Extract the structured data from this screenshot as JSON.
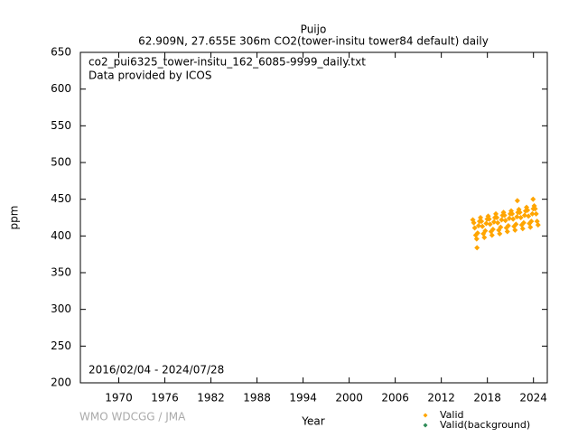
{
  "chart_data": {
    "type": "scatter",
    "title": "Puijo",
    "subtitle": "62.909N, 27.655E 306m    CO2(tower-insitu tower84 default) daily",
    "annotations": [
      "co2_pui6325_tower-insitu_162_6085-9999_daily.txt",
      "Data provided by ICOS",
      "2016/02/04 - 2024/07/28"
    ],
    "credit": "WMO WDCGG / JMA",
    "xlabel": "Year",
    "ylabel": "ppm",
    "xlim": [
      1965,
      2025.8
    ],
    "xticks": [
      1970,
      1976,
      1982,
      1988,
      1994,
      2000,
      2006,
      2012,
      2018,
      2024
    ],
    "ylim": [
      200,
      650
    ],
    "yticks": [
      200,
      250,
      300,
      350,
      400,
      450,
      500,
      550,
      600,
      650
    ],
    "series": [
      {
        "name": "Valid",
        "color": "#ffa500",
        "x": [
          2016.1,
          2016.225,
          2016.35,
          2016.475,
          2016.6,
          2016.725,
          2016.85,
          2016.975,
          2017.1,
          2017.225,
          2017.35,
          2017.475,
          2017.6,
          2017.725,
          2017.85,
          2017.975,
          2018.1,
          2018.225,
          2018.35,
          2018.475,
          2018.6,
          2018.725,
          2018.85,
          2018.975,
          2019.1,
          2019.225,
          2019.35,
          2019.475,
          2019.6,
          2019.725,
          2019.85,
          2019.975,
          2020.1,
          2020.225,
          2020.35,
          2020.475,
          2020.6,
          2020.725,
          2020.85,
          2020.975,
          2021.1,
          2021.225,
          2021.35,
          2021.475,
          2021.6,
          2021.725,
          2021.85,
          2021.975,
          2022.1,
          2022.225,
          2022.35,
          2022.475,
          2022.6,
          2022.725,
          2022.85,
          2022.975,
          2023.1,
          2023.225,
          2023.35,
          2023.475,
          2023.6,
          2023.725,
          2023.85,
          2023.975,
          2024.1,
          2024.225,
          2024.35,
          2024.475,
          2024.6,
          2016.65,
          2021.9,
          2023.95
        ],
        "values": [
          422,
          418,
          411,
          401,
          396,
          404,
          414,
          420,
          425,
          420,
          413,
          403,
          398,
          407,
          417,
          423,
          427,
          423,
          416,
          406,
          401,
          409,
          419,
          425,
          430,
          425,
          418,
          408,
          403,
          412,
          422,
          428,
          432,
          428,
          421,
          411,
          406,
          414,
          424,
          430,
          434,
          430,
          423,
          413,
          408,
          416,
          426,
          432,
          436,
          432,
          425,
          415,
          410,
          418,
          428,
          434,
          439,
          435,
          427,
          417,
          412,
          420,
          430,
          437,
          441,
          437,
          430,
          420,
          415,
          384,
          448,
          450
        ]
      },
      {
        "name": "Valid(background)",
        "color": "#2e8b57",
        "x": [],
        "values": []
      }
    ]
  }
}
